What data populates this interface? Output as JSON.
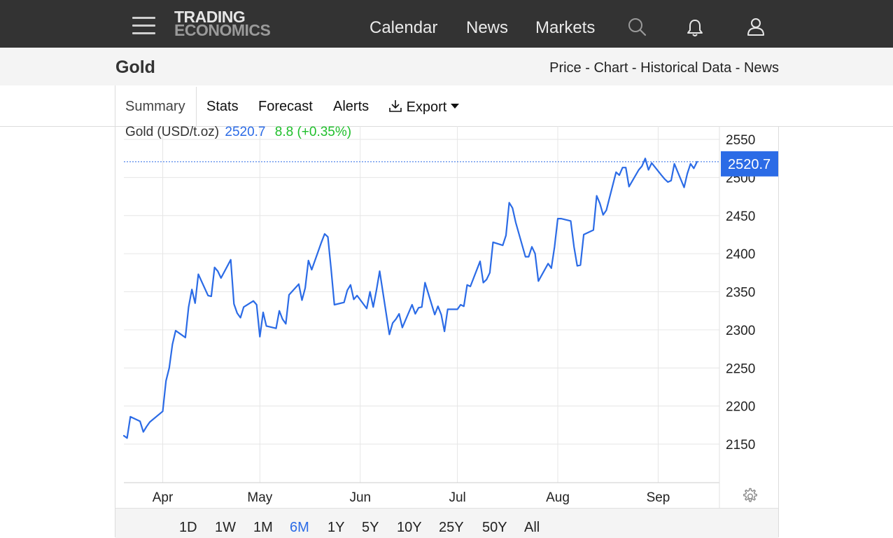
{
  "header": {
    "logo_line1": "TRADING",
    "logo_line2": "ECONOMICS",
    "nav": [
      "Calendar",
      "News",
      "Markets"
    ],
    "icons": [
      "menu-icon",
      "search-icon",
      "bell-icon",
      "user-icon"
    ]
  },
  "page": {
    "title": "Gold",
    "breadcrumb": [
      "Price",
      "Chart",
      "Historical Data",
      "News"
    ],
    "breadcrumb_sep": " - "
  },
  "tabs": {
    "items": [
      "Summary",
      "Stats",
      "Forecast",
      "Alerts",
      "Export"
    ],
    "active": "Summary",
    "export_icon": "download-icon"
  },
  "legend": {
    "name": "Gold (USD/t.oz)",
    "price": "2520.7",
    "change": "8.8 (+0.35%)"
  },
  "ranges": {
    "items": [
      "1D",
      "1W",
      "1M",
      "6M",
      "1Y",
      "5Y",
      "10Y",
      "25Y",
      "50Y",
      "All"
    ],
    "active": "6M"
  },
  "colors": {
    "line": "#2b6be6",
    "header_bg": "#333333",
    "change_up": "#1fbf2b",
    "grid": "#e6e6e6"
  },
  "chart_data": {
    "type": "line",
    "title": "Gold (USD/t.oz)",
    "ylabel": "",
    "xlabel": "",
    "ylim": [
      2100,
      2560
    ],
    "yticks": [
      2550,
      2500,
      2450,
      2400,
      2350,
      2300,
      2250,
      2200,
      2150
    ],
    "xticks": [
      {
        "label": "Apr",
        "x": "2024-04-01"
      },
      {
        "label": "May",
        "x": "2024-05-01"
      },
      {
        "label": "Jun",
        "x": "2024-06-01"
      },
      {
        "label": "Jul",
        "x": "2024-07-01"
      },
      {
        "label": "Aug",
        "x": "2024-08-01"
      },
      {
        "label": "Sep",
        "x": "2024-09-01"
      }
    ],
    "xlim": [
      "2024-03-20",
      "2024-09-13"
    ],
    "last_value": 2520.7,
    "last_value_label": "2520.7",
    "grid": true,
    "series": [
      {
        "name": "Gold (USD/t.oz)",
        "points": [
          [
            "2024-03-20",
            2161
          ],
          [
            "2024-03-21",
            2158
          ],
          [
            "2024-03-22",
            2186
          ],
          [
            "2024-03-25",
            2180
          ],
          [
            "2024-03-26",
            2166
          ],
          [
            "2024-03-27",
            2173
          ],
          [
            "2024-03-28",
            2179
          ],
          [
            "2024-04-01",
            2193
          ],
          [
            "2024-04-02",
            2233
          ],
          [
            "2024-04-03",
            2250
          ],
          [
            "2024-04-04",
            2281
          ],
          [
            "2024-04-05",
            2299
          ],
          [
            "2024-04-08",
            2290
          ],
          [
            "2024-04-09",
            2330
          ],
          [
            "2024-04-10",
            2353
          ],
          [
            "2024-04-11",
            2335
          ],
          [
            "2024-04-12",
            2373
          ],
          [
            "2024-04-15",
            2345
          ],
          [
            "2024-04-16",
            2344
          ],
          [
            "2024-04-17",
            2382
          ],
          [
            "2024-04-18",
            2377
          ],
          [
            "2024-04-19",
            2368
          ],
          [
            "2024-04-22",
            2392
          ],
          [
            "2024-04-23",
            2334
          ],
          [
            "2024-04-24",
            2322
          ],
          [
            "2024-04-25",
            2316
          ],
          [
            "2024-04-26",
            2330
          ],
          [
            "2024-04-29",
            2338
          ],
          [
            "2024-04-30",
            2333
          ],
          [
            "2024-05-01",
            2291
          ],
          [
            "2024-05-02",
            2323
          ],
          [
            "2024-05-03",
            2305
          ],
          [
            "2024-05-06",
            2302
          ],
          [
            "2024-05-07",
            2325
          ],
          [
            "2024-05-08",
            2314
          ],
          [
            "2024-05-09",
            2308
          ],
          [
            "2024-05-10",
            2346
          ],
          [
            "2024-05-13",
            2360
          ],
          [
            "2024-05-14",
            2339
          ],
          [
            "2024-05-15",
            2355
          ],
          [
            "2024-05-16",
            2391
          ],
          [
            "2024-05-17",
            2379
          ],
          [
            "2024-05-20",
            2415
          ],
          [
            "2024-05-21",
            2426
          ],
          [
            "2024-05-22",
            2422
          ],
          [
            "2024-05-23",
            2380
          ],
          [
            "2024-05-24",
            2333
          ],
          [
            "2024-05-27",
            2336
          ],
          [
            "2024-05-28",
            2352
          ],
          [
            "2024-05-29",
            2359
          ],
          [
            "2024-05-30",
            2340
          ],
          [
            "2024-05-31",
            2345
          ],
          [
            "2024-06-03",
            2328
          ],
          [
            "2024-06-04",
            2350
          ],
          [
            "2024-06-05",
            2330
          ],
          [
            "2024-06-06",
            2352
          ],
          [
            "2024-06-07",
            2377
          ],
          [
            "2024-06-10",
            2294
          ],
          [
            "2024-06-11",
            2309
          ],
          [
            "2024-06-12",
            2314
          ],
          [
            "2024-06-13",
            2321
          ],
          [
            "2024-06-14",
            2303
          ],
          [
            "2024-06-17",
            2333
          ],
          [
            "2024-06-18",
            2321
          ],
          [
            "2024-06-19",
            2329
          ],
          [
            "2024-06-20",
            2330
          ],
          [
            "2024-06-21",
            2362
          ],
          [
            "2024-06-24",
            2320
          ],
          [
            "2024-06-25",
            2331
          ],
          [
            "2024-06-26",
            2320
          ],
          [
            "2024-06-27",
            2298
          ],
          [
            "2024-06-28",
            2327
          ],
          [
            "2024-07-01",
            2327
          ],
          [
            "2024-07-02",
            2333
          ],
          [
            "2024-07-03",
            2331
          ],
          [
            "2024-07-04",
            2359
          ],
          [
            "2024-07-05",
            2357
          ],
          [
            "2024-07-08",
            2390
          ],
          [
            "2024-07-09",
            2362
          ],
          [
            "2024-07-10",
            2366
          ],
          [
            "2024-07-11",
            2375
          ],
          [
            "2024-07-12",
            2415
          ],
          [
            "2024-07-15",
            2411
          ],
          [
            "2024-07-16",
            2424
          ],
          [
            "2024-07-17",
            2467
          ],
          [
            "2024-07-18",
            2460
          ],
          [
            "2024-07-19",
            2441
          ],
          [
            "2024-07-22",
            2396
          ],
          [
            "2024-07-23",
            2396
          ],
          [
            "2024-07-24",
            2409
          ],
          [
            "2024-07-25",
            2400
          ],
          [
            "2024-07-26",
            2364
          ],
          [
            "2024-07-29",
            2387
          ],
          [
            "2024-07-30",
            2381
          ],
          [
            "2024-07-31",
            2409
          ],
          [
            "2024-08-01",
            2446
          ],
          [
            "2024-08-02",
            2446
          ],
          [
            "2024-08-05",
            2443
          ],
          [
            "2024-08-06",
            2409
          ],
          [
            "2024-08-07",
            2384
          ],
          [
            "2024-08-08",
            2385
          ],
          [
            "2024-08-09",
            2425
          ],
          [
            "2024-08-12",
            2431
          ],
          [
            "2024-08-13",
            2476
          ],
          [
            "2024-08-14",
            2466
          ],
          [
            "2024-08-15",
            2451
          ],
          [
            "2024-08-16",
            2457
          ],
          [
            "2024-08-19",
            2507
          ],
          [
            "2024-08-20",
            2503
          ],
          [
            "2024-08-21",
            2513
          ],
          [
            "2024-08-22",
            2513
          ],
          [
            "2024-08-23",
            2488
          ],
          [
            "2024-08-26",
            2510
          ],
          [
            "2024-08-27",
            2515
          ],
          [
            "2024-08-28",
            2525
          ],
          [
            "2024-08-29",
            2510
          ],
          [
            "2024-08-30",
            2519
          ],
          [
            "2024-09-02",
            2503
          ],
          [
            "2024-09-03",
            2498
          ],
          [
            "2024-09-04",
            2494
          ],
          [
            "2024-09-05",
            2496
          ],
          [
            "2024-09-06",
            2518
          ],
          [
            "2024-09-09",
            2487
          ],
          [
            "2024-09-10",
            2505
          ],
          [
            "2024-09-11",
            2518
          ],
          [
            "2024-09-12",
            2512
          ],
          [
            "2024-09-13",
            2520.7
          ]
        ]
      }
    ]
  }
}
